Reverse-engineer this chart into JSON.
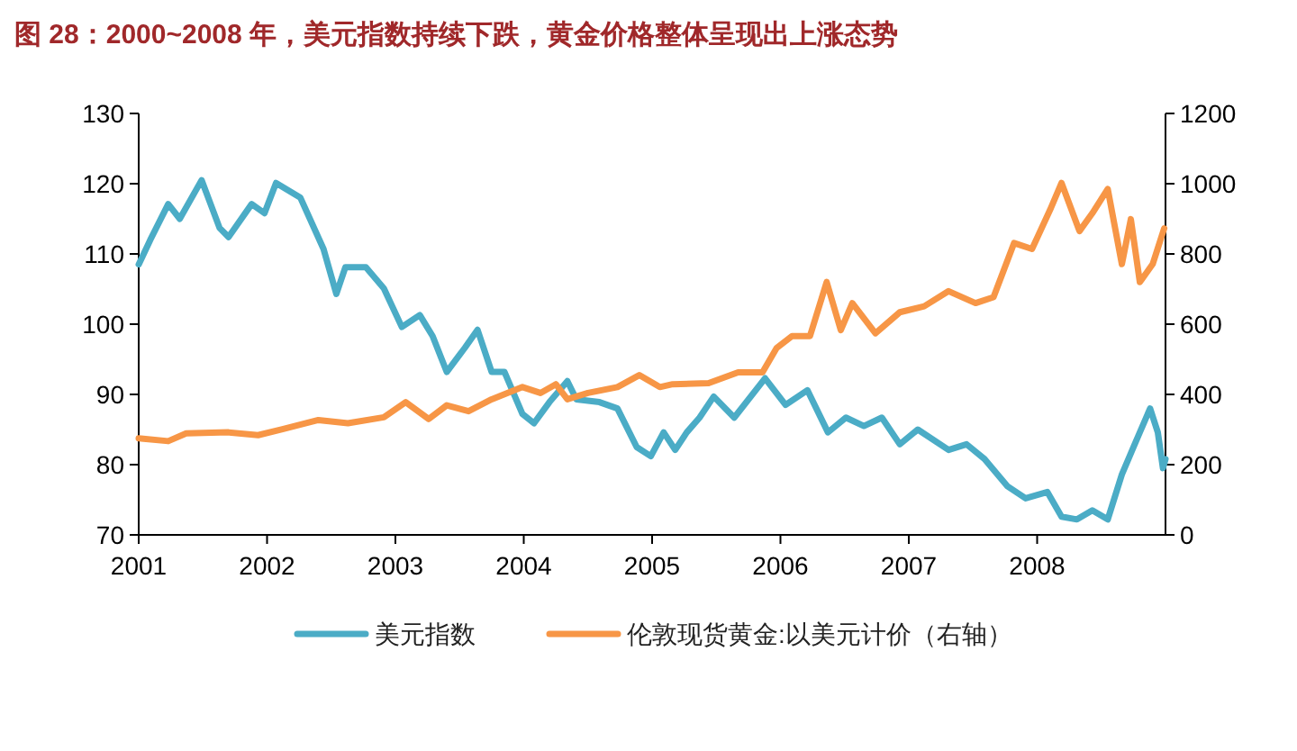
{
  "chart_data": {
    "type": "line",
    "title": "图 28：2000~2008 年，美元指数持续下跌，黄金价格整体呈现出上涨态势",
    "xlim": [
      2001,
      2009
    ],
    "xticks": [
      2001,
      2002,
      2003,
      2004,
      2005,
      2006,
      2007,
      2008
    ],
    "ylim": [
      70,
      130
    ],
    "yticks": [
      70,
      80,
      90,
      100,
      110,
      120,
      130
    ],
    "y2lim": [
      0,
      1200
    ],
    "y2ticks": [
      0,
      200,
      400,
      600,
      800,
      1000,
      1200
    ],
    "legend": "bottom",
    "grid": false,
    "series": [
      {
        "name": "美元指数",
        "color": "#4bacc6",
        "x": [
          2001.0,
          2001.09,
          2001.23,
          2001.32,
          2001.49,
          2001.63,
          2001.7,
          2001.88,
          2001.98,
          2002.07,
          2002.26,
          2002.44,
          2002.54,
          2002.61,
          2002.77,
          2002.91,
          2003.05,
          2003.19,
          2003.29,
          2003.4,
          2003.54,
          2003.64,
          2003.75,
          2003.85,
          2003.99,
          2004.08,
          2004.2,
          2004.34,
          2004.41,
          2004.59,
          2004.73,
          2004.88,
          2004.99,
          2005.09,
          2005.18,
          2005.27,
          2005.37,
          2005.48,
          2005.64,
          2005.88,
          2006.04,
          2006.21,
          2006.37,
          2006.51,
          2006.65,
          2006.79,
          2006.93,
          2007.07,
          2007.31,
          2007.45,
          2007.59,
          2007.77,
          2007.91,
          2008.08,
          2008.19,
          2008.31,
          2008.43,
          2008.55,
          2008.66,
          2008.76,
          2008.88,
          2008.94,
          2008.98,
          2009.0
        ],
        "values": [
          108.5,
          112.0,
          117.1,
          115.0,
          120.5,
          113.7,
          112.4,
          117.1,
          115.8,
          120.1,
          118.0,
          110.7,
          104.3,
          108.1,
          108.1,
          105.1,
          99.6,
          101.3,
          98.3,
          93.2,
          96.6,
          99.2,
          93.2,
          93.2,
          87.2,
          85.9,
          88.9,
          91.9,
          89.3,
          88.9,
          88.0,
          82.5,
          81.2,
          84.6,
          82.1,
          84.6,
          86.7,
          89.7,
          86.7,
          92.3,
          88.5,
          90.6,
          84.6,
          86.7,
          85.5,
          86.7,
          82.9,
          85.0,
          82.1,
          82.9,
          80.8,
          76.9,
          75.2,
          76.1,
          72.6,
          72.2,
          73.5,
          72.2,
          78.6,
          82.9,
          88.0,
          84.6,
          79.5,
          80.8
        ]
      },
      {
        "name": "伦敦现货黄金:以美元计价（右轴）",
        "color": "#f79646",
        "axis": "y2",
        "x": [
          2001.0,
          2001.23,
          2001.37,
          2001.7,
          2001.93,
          2002.12,
          2002.4,
          2002.63,
          2002.91,
          2003.08,
          2003.26,
          2003.4,
          2003.57,
          2003.75,
          2003.99,
          2004.13,
          2004.25,
          2004.34,
          2004.5,
          2004.73,
          2004.9,
          2005.06,
          2005.16,
          2005.44,
          2005.67,
          2005.86,
          2005.97,
          2006.09,
          2006.23,
          2006.36,
          2006.47,
          2006.56,
          2006.74,
          2006.93,
          2007.12,
          2007.31,
          2007.52,
          2007.66,
          2007.82,
          2007.96,
          2008.1,
          2008.19,
          2008.33,
          2008.43,
          2008.55,
          2008.66,
          2008.73,
          2008.8,
          2008.9,
          2008.99
        ],
        "values": [
          275,
          267,
          289,
          292,
          284,
          301,
          327,
          318,
          335,
          378,
          330,
          369,
          352,
          386,
          421,
          404,
          429,
          386,
          404,
          421,
          455,
          421,
          429,
          432,
          463,
          463,
          532,
          566,
          566,
          720,
          583,
          660,
          574,
          634,
          651,
          694,
          660,
          677,
          831,
          814,
          925,
          1002,
          865,
          916,
          985,
          771,
          899,
          720,
          771,
          873
        ]
      }
    ]
  }
}
